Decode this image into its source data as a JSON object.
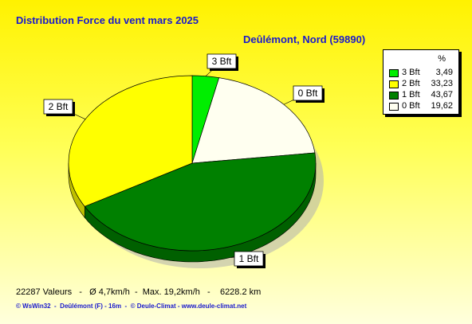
{
  "title": "Distribution Force du vent  mars 2025",
  "location": "Deûlémont, Nord (59890)",
  "legend": {
    "header": "%",
    "items": [
      {
        "name": "3 Bft",
        "value": "3,49",
        "color": "#00ee00"
      },
      {
        "name": "2 Bft",
        "value": "33,23",
        "color": "#ffff00"
      },
      {
        "name": "1 Bft",
        "value": "43,67",
        "color": "#008000"
      },
      {
        "name": "0 Bft",
        "value": "19,62",
        "color": "#fffff0"
      }
    ]
  },
  "stats": "22287 Valeurs   -   Ø 4,7km/h  -  Max. 19,2km/h   -    6228.2 km",
  "footer": "© WsWin32  -  Deûlémont (F) - 16m  -  © Deule-Climat - www.deule-climat.net",
  "chart_data": {
    "type": "pie",
    "title": "Distribution Force du vent  mars 2025",
    "slices": [
      {
        "label": "3 Bft",
        "value": 3.49,
        "color": "#00ee00"
      },
      {
        "label": "0 Bft",
        "value": 19.62,
        "color": "#fffff0"
      },
      {
        "label": "1 Bft",
        "value": 43.67,
        "color": "#008000"
      },
      {
        "label": "2 Bft",
        "value": 33.23,
        "color": "#ffff00"
      }
    ],
    "start_angle": "top",
    "direction": "clockwise",
    "style": "3d",
    "legend_position": "top-right"
  }
}
